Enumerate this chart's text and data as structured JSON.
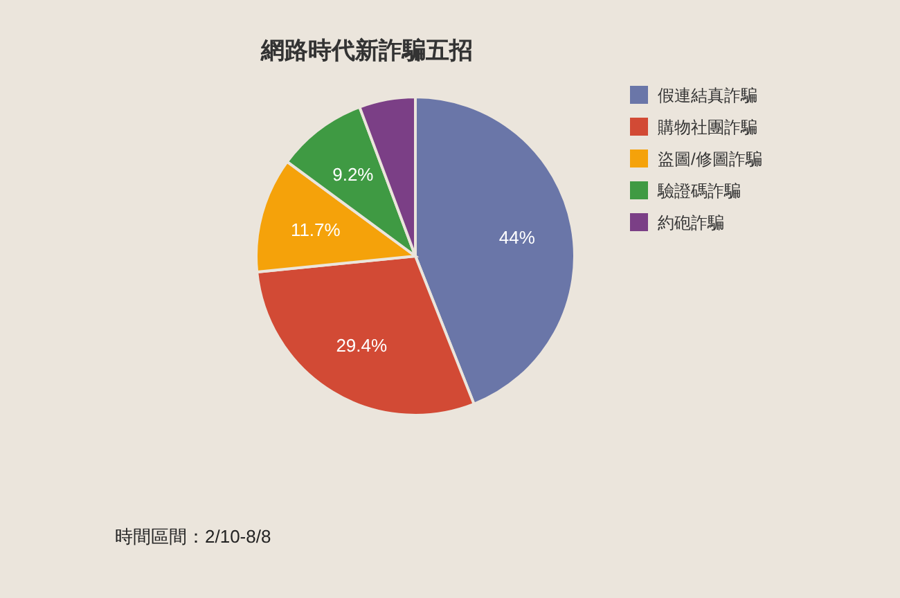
{
  "chart_data": {
    "type": "pie",
    "title": "網路時代新詐騙五招",
    "categories": [
      "假連結真詐騙",
      "購物社團詐騙",
      "盜圖/修圖詐騙",
      "驗證碼詐騙",
      "約砲詐騙"
    ],
    "values": [
      44,
      29.4,
      11.7,
      9.2,
      5.7
    ],
    "value_labels": [
      "44%",
      "29.4%",
      "11.7%",
      "9.2%",
      null
    ],
    "colors": [
      "#6a76a8",
      "#d24a35",
      "#f5a20a",
      "#3f9a43",
      "#7b3f86"
    ],
    "legend": "right",
    "annotations": [
      "時間區間：2/10-8/8"
    ]
  }
}
